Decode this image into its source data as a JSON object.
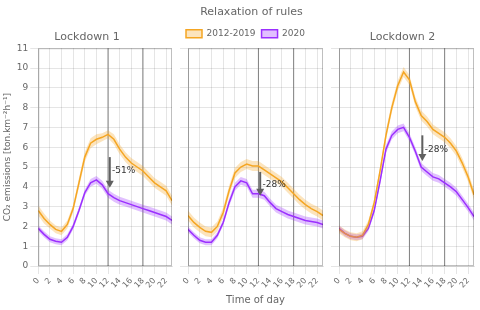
{
  "chart_data": [
    {
      "type": "line",
      "title": "Lockdown 1",
      "ylabel": "CO₂ emissions [ton.km⁻²h⁻¹]",
      "x": [
        0,
        1,
        2,
        3,
        4,
        5,
        6,
        7,
        8,
        9,
        10,
        11,
        12,
        13,
        14,
        15,
        16,
        17,
        18,
        19,
        20,
        21,
        22,
        23
      ],
      "xlim": [
        0,
        23
      ],
      "xticks": [
        0,
        2,
        4,
        6,
        8,
        10,
        12,
        14,
        16,
        18,
        20,
        22
      ],
      "ylim": [
        0,
        11
      ],
      "yticks": [
        0,
        1,
        2,
        3,
        4,
        5,
        6,
        7,
        8,
        9,
        10,
        11
      ],
      "grid": true,
      "series": [
        {
          "color": "#F5A623",
          "values": [
            2.8,
            2.4,
            2.1,
            1.85,
            1.75,
            2.1,
            2.9,
            4.2,
            5.5,
            6.2,
            6.4,
            6.5,
            6.65,
            6.4,
            5.9,
            5.5,
            5.2,
            5.0,
            4.8,
            4.5,
            4.2,
            4.0,
            3.8,
            3.3
          ],
          "upper": [
            3.05,
            2.65,
            2.3,
            2.05,
            1.95,
            2.3,
            3.1,
            4.45,
            5.75,
            6.45,
            6.65,
            6.7,
            6.85,
            6.65,
            6.15,
            5.75,
            5.45,
            5.25,
            5.05,
            4.75,
            4.45,
            4.25,
            4.05,
            3.55
          ],
          "lower": [
            2.55,
            2.15,
            1.9,
            1.65,
            1.55,
            1.9,
            2.7,
            3.95,
            5.25,
            5.95,
            6.15,
            6.3,
            6.45,
            6.15,
            5.65,
            5.25,
            4.95,
            4.75,
            4.55,
            4.25,
            3.95,
            3.75,
            3.55,
            3.05
          ]
        },
        {
          "color": "#9B30FF",
          "values": [
            1.9,
            1.6,
            1.35,
            1.25,
            1.2,
            1.45,
            2.0,
            2.8,
            3.7,
            4.2,
            4.35,
            4.1,
            3.65,
            3.45,
            3.3,
            3.2,
            3.1,
            3.0,
            2.9,
            2.8,
            2.7,
            2.6,
            2.5,
            2.3
          ],
          "upper": [
            2.05,
            1.75,
            1.5,
            1.4,
            1.35,
            1.6,
            2.15,
            2.95,
            3.85,
            4.4,
            4.55,
            4.3,
            3.85,
            3.65,
            3.5,
            3.4,
            3.3,
            3.2,
            3.1,
            3.0,
            2.9,
            2.8,
            2.7,
            2.5
          ],
          "lower": [
            1.75,
            1.45,
            1.2,
            1.1,
            1.05,
            1.3,
            1.85,
            2.65,
            3.55,
            4.0,
            4.15,
            3.9,
            3.45,
            3.25,
            3.1,
            3.0,
            2.9,
            2.8,
            2.7,
            2.6,
            2.5,
            2.4,
            2.3,
            2.1
          ]
        }
      ],
      "vertical_lines": [
        12,
        18
      ],
      "annotations": [
        {
          "text": "-51%",
          "x": 12.7,
          "y": 4.8,
          "arrow_x": 12.3,
          "arrow_y_start": 5.5,
          "arrow_y_end": 3.95
        }
      ]
    },
    {
      "type": "line",
      "title": "Relaxation of rules",
      "xlabel": "Time of day",
      "x": [
        0,
        1,
        2,
        3,
        4,
        5,
        6,
        7,
        8,
        9,
        10,
        11,
        12,
        13,
        14,
        15,
        16,
        17,
        18,
        19,
        20,
        21,
        22,
        23
      ],
      "xlim": [
        0,
        23
      ],
      "xticks": [
        0,
        2,
        4,
        6,
        8,
        10,
        12,
        14,
        16,
        18,
        20,
        22
      ],
      "ylim": [
        0,
        11
      ],
      "yticks": [
        0,
        1,
        2,
        3,
        4,
        5,
        6,
        7,
        8,
        9,
        10,
        11
      ],
      "grid": true,
      "tick_labels": "x",
      "legend": "upper left",
      "series": [
        {
          "name": "2012-2019",
          "color": "#F5A623",
          "values": [
            2.55,
            2.2,
            1.95,
            1.75,
            1.7,
            2.0,
            2.7,
            3.8,
            4.7,
            5.0,
            5.15,
            5.05,
            5.05,
            4.85,
            4.65,
            4.45,
            4.25,
            3.95,
            3.65,
            3.35,
            3.1,
            2.9,
            2.75,
            2.55
          ],
          "upper": [
            2.8,
            2.45,
            2.2,
            2.0,
            1.95,
            2.25,
            2.95,
            4.05,
            4.95,
            5.25,
            5.4,
            5.3,
            5.3,
            5.1,
            4.9,
            4.7,
            4.5,
            4.2,
            3.9,
            3.6,
            3.35,
            3.15,
            3.0,
            2.8
          ],
          "lower": [
            2.3,
            1.95,
            1.7,
            1.5,
            1.45,
            1.75,
            2.45,
            3.55,
            4.45,
            4.75,
            4.9,
            4.8,
            4.8,
            4.6,
            4.4,
            4.2,
            4.0,
            3.7,
            3.4,
            3.1,
            2.85,
            2.65,
            2.5,
            2.3
          ]
        },
        {
          "name": "2020",
          "color": "#9B30FF",
          "values": [
            1.85,
            1.55,
            1.3,
            1.2,
            1.2,
            1.55,
            2.2,
            3.2,
            4.0,
            4.3,
            4.2,
            3.65,
            3.65,
            3.55,
            3.2,
            2.9,
            2.75,
            2.6,
            2.5,
            2.4,
            2.3,
            2.25,
            2.2,
            2.1
          ],
          "upper": [
            2.0,
            1.7,
            1.45,
            1.35,
            1.35,
            1.7,
            2.35,
            3.4,
            4.2,
            4.5,
            4.4,
            3.85,
            3.85,
            3.75,
            3.4,
            3.1,
            2.95,
            2.8,
            2.7,
            2.6,
            2.5,
            2.45,
            2.4,
            2.3
          ],
          "lower": [
            1.7,
            1.4,
            1.15,
            1.05,
            1.05,
            1.4,
            2.05,
            3.0,
            3.8,
            4.1,
            4.0,
            3.45,
            3.45,
            3.35,
            3.0,
            2.7,
            2.55,
            2.4,
            2.3,
            2.2,
            2.1,
            2.05,
            2.0,
            1.9
          ]
        }
      ],
      "vertical_lines": [
        12,
        18
      ],
      "annotations": [
        {
          "text": "-28%",
          "x": 12.7,
          "y": 4.1,
          "arrow_x": 12.3,
          "arrow_y_start": 4.75,
          "arrow_y_end": 3.55
        }
      ]
    },
    {
      "type": "line",
      "title": "Lockdown 2",
      "x": [
        0,
        1,
        2,
        3,
        4,
        5,
        6,
        7,
        8,
        9,
        10,
        11,
        12,
        13,
        14,
        15,
        16,
        17,
        18,
        19,
        20,
        21,
        22,
        23
      ],
      "xlim": [
        0,
        23
      ],
      "xticks": [
        0,
        2,
        4,
        6,
        8,
        10,
        12,
        14,
        16,
        18,
        20,
        22
      ],
      "ylim": [
        0,
        11
      ],
      "yticks": [
        0,
        1,
        2,
        3,
        4,
        5,
        6,
        7,
        8,
        9,
        10,
        11
      ],
      "grid": true,
      "tick_labels": "x",
      "series": [
        {
          "color": "#F5A623",
          "values": [
            1.85,
            1.65,
            1.5,
            1.45,
            1.55,
            2.1,
            3.2,
            4.8,
            6.6,
            8.0,
            9.1,
            9.8,
            9.4,
            8.3,
            7.6,
            7.3,
            6.9,
            6.7,
            6.5,
            6.2,
            5.8,
            5.2,
            4.5,
            3.6
          ],
          "upper": [
            2.05,
            1.85,
            1.7,
            1.65,
            1.75,
            2.3,
            3.4,
            5.0,
            6.85,
            8.25,
            9.35,
            10.05,
            9.65,
            8.55,
            7.85,
            7.55,
            7.15,
            6.95,
            6.75,
            6.45,
            6.05,
            5.45,
            4.75,
            3.85
          ],
          "lower": [
            1.65,
            1.45,
            1.3,
            1.25,
            1.35,
            1.9,
            3.0,
            4.6,
            6.35,
            7.75,
            8.85,
            9.55,
            9.15,
            8.05,
            7.35,
            7.05,
            6.65,
            6.45,
            6.25,
            5.95,
            5.55,
            4.95,
            4.25,
            3.35
          ]
        },
        {
          "color": "#9B30FF",
          "values": [
            1.9,
            1.65,
            1.5,
            1.45,
            1.5,
            1.9,
            2.8,
            4.3,
            5.9,
            6.6,
            6.9,
            7.0,
            6.5,
            5.8,
            5.0,
            4.75,
            4.5,
            4.4,
            4.2,
            4.0,
            3.75,
            3.35,
            2.95,
            2.5
          ],
          "upper": [
            2.05,
            1.8,
            1.65,
            1.6,
            1.65,
            2.05,
            2.95,
            4.5,
            6.1,
            6.8,
            7.1,
            7.2,
            6.7,
            6.0,
            5.2,
            4.95,
            4.7,
            4.6,
            4.4,
            4.2,
            3.95,
            3.55,
            3.15,
            2.7
          ],
          "lower": [
            1.75,
            1.5,
            1.35,
            1.3,
            1.35,
            1.75,
            2.65,
            4.1,
            5.7,
            6.4,
            6.7,
            6.8,
            6.3,
            5.6,
            4.8,
            4.55,
            4.3,
            4.2,
            4.0,
            3.8,
            3.55,
            3.15,
            2.75,
            2.3
          ]
        }
      ],
      "vertical_lines": [
        12,
        18
      ],
      "annotations": [
        {
          "text": "-28%",
          "x": 14.6,
          "y": 5.9,
          "arrow_x": 14.2,
          "arrow_y_start": 6.6,
          "arrow_y_end": 5.3
        }
      ]
    }
  ]
}
